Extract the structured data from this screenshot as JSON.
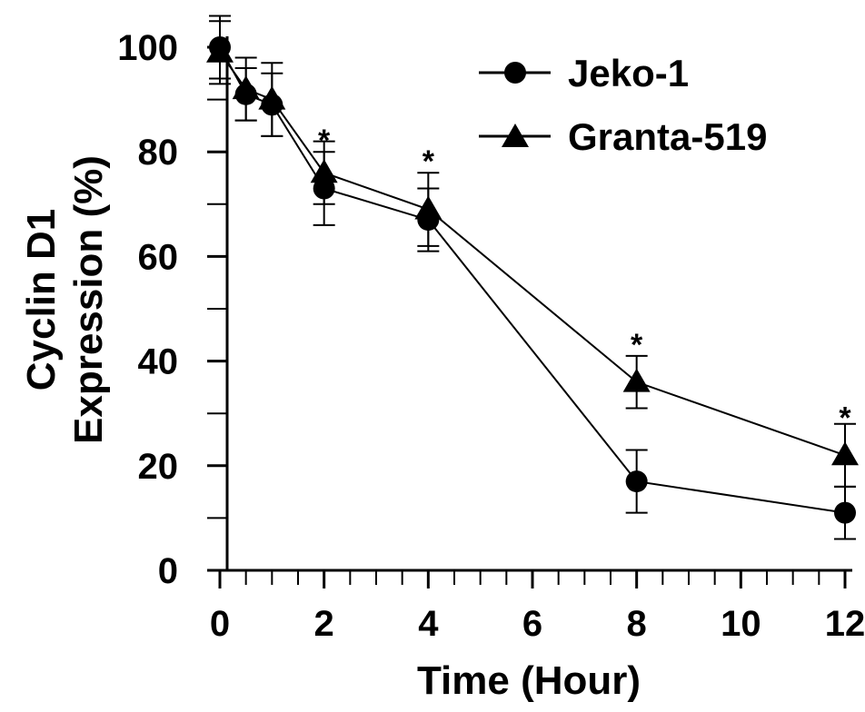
{
  "chart_data": {
    "type": "line",
    "title": "",
    "xlabel": "Time (Hour)",
    "ylabel_line1": "Cyclin D1",
    "ylabel_line2": "Expression (%)",
    "xlim": [
      0,
      12
    ],
    "ylim": [
      0,
      100
    ],
    "x_ticks": [
      0,
      2,
      4,
      6,
      8,
      10,
      12
    ],
    "y_ticks": [
      0,
      20,
      40,
      60,
      80,
      100
    ],
    "x_minor_ticks": [
      0.5,
      1,
      1.5,
      2.5,
      3,
      3.5,
      4.5,
      5,
      5.5,
      6.5,
      7,
      7.5,
      8.5,
      9,
      9.5,
      10.5,
      11,
      11.5
    ],
    "y_minor_ticks": [
      10,
      30,
      50,
      70,
      90
    ],
    "grid": false,
    "legend_position": "top-right",
    "series": [
      {
        "name": "Jeko-1",
        "marker": "circle",
        "color": "#000000",
        "x": [
          0,
          0.5,
          1,
          2,
          4,
          8,
          12
        ],
        "y": [
          100,
          91,
          89,
          73,
          67,
          17,
          11
        ],
        "err": [
          6,
          5,
          6,
          7,
          6,
          6,
          5
        ]
      },
      {
        "name": "Granta-519",
        "marker": "triangle",
        "color": "#000000",
        "x": [
          0,
          0.5,
          1,
          2,
          4,
          8,
          12
        ],
        "y": [
          99,
          92,
          90,
          76,
          69,
          36,
          22
        ],
        "err": [
          6,
          6,
          7,
          6,
          7,
          5,
          6
        ]
      }
    ],
    "annotations": [
      {
        "text": "*",
        "x": 2,
        "y": 84
      },
      {
        "text": "*",
        "x": 4,
        "y": 80
      },
      {
        "text": "*",
        "x": 8,
        "y": 45
      },
      {
        "text": "*",
        "x": 12,
        "y": 31
      }
    ]
  }
}
